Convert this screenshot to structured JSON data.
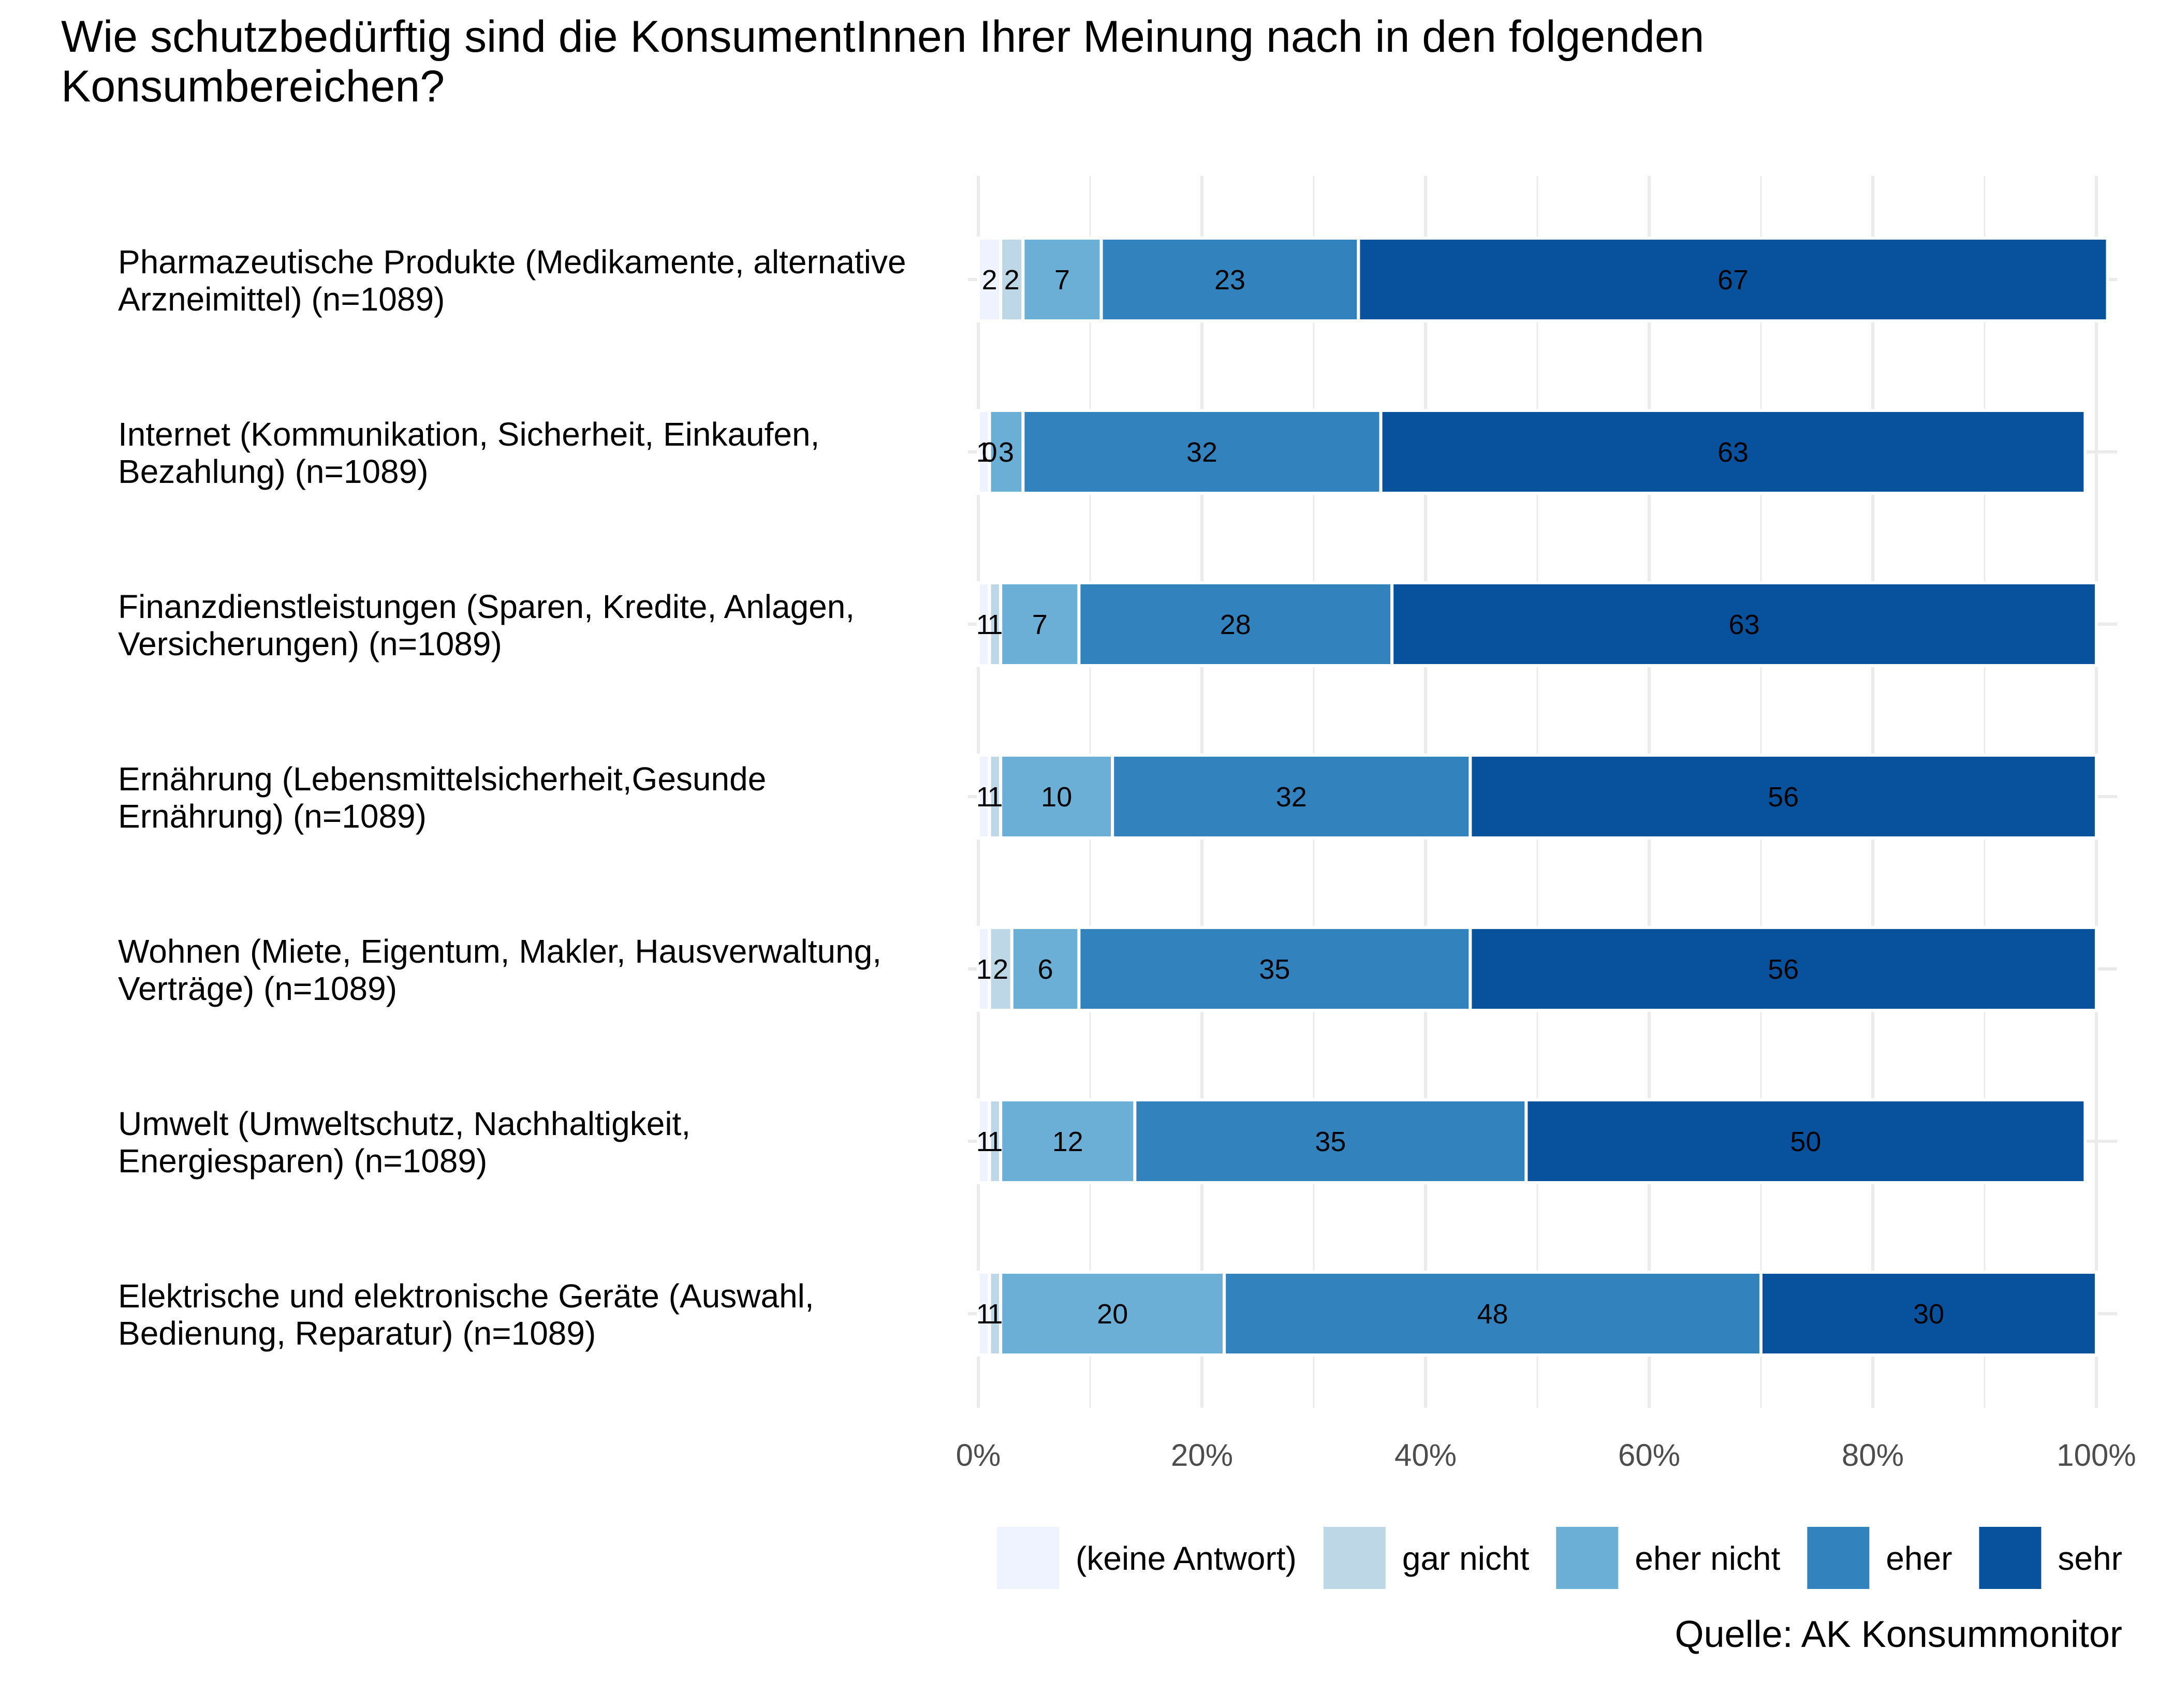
{
  "chart_data": {
    "type": "bar",
    "orientation": "horizontal",
    "stacked": true,
    "percent": true,
    "title_lines": [
      "Wie schutzbedürftig sind die KonsumentInnen Ihrer Meinung nach in den folgenden",
      "Konsumbereichen?"
    ],
    "categories": [
      [
        "Pharmazeutische Produkte (Medikamente, alternative",
        "Arzneimittel) (n=1089)"
      ],
      [
        "Internet (Kommunikation, Sicherheit, Einkaufen,",
        "Bezahlung) (n=1089)"
      ],
      [
        "Finanzdienstleistungen (Sparen, Kredite, Anlagen,",
        "Versicherungen) (n=1089)"
      ],
      [
        "Ernährung (Lebensmittelsicherheit,Gesunde",
        "Ernährung) (n=1089)"
      ],
      [
        "Wohnen (Miete, Eigentum, Makler, Hausverwaltung,",
        "Verträge) (n=1089)"
      ],
      [
        "Umwelt (Umweltschutz, Nachhaltigkeit,",
        "Energiesparen) (n=1089)"
      ],
      [
        "Elektrische und elektronische Geräte (Auswahl,",
        "Bedienung, Reparatur) (n=1089)"
      ]
    ],
    "series": [
      {
        "name": "(keine Antwort)",
        "color": "#eff3ff",
        "values": [
          2,
          1,
          1,
          1,
          1,
          1,
          1
        ]
      },
      {
        "name": "gar nicht",
        "color": "#bdd7e7",
        "values": [
          2,
          0,
          1,
          1,
          2,
          1,
          1
        ]
      },
      {
        "name": "eher nicht",
        "color": "#6baed6",
        "values": [
          7,
          3,
          7,
          10,
          6,
          12,
          20
        ]
      },
      {
        "name": "eher",
        "color": "#3182bd",
        "values": [
          23,
          32,
          28,
          32,
          35,
          35,
          48
        ]
      },
      {
        "name": "sehr",
        "color": "#08519c",
        "values": [
          67,
          63,
          63,
          56,
          56,
          50,
          30
        ]
      }
    ],
    "xlim": [
      0,
      100
    ],
    "x_ticks": [
      "0%",
      "20%",
      "40%",
      "60%",
      "80%",
      "100%"
    ],
    "x_tick_values": [
      0,
      20,
      40,
      60,
      80,
      100
    ],
    "legend_position": "bottom-right",
    "caption": "Quelle: AK Konsummonitor",
    "grid": true
  }
}
